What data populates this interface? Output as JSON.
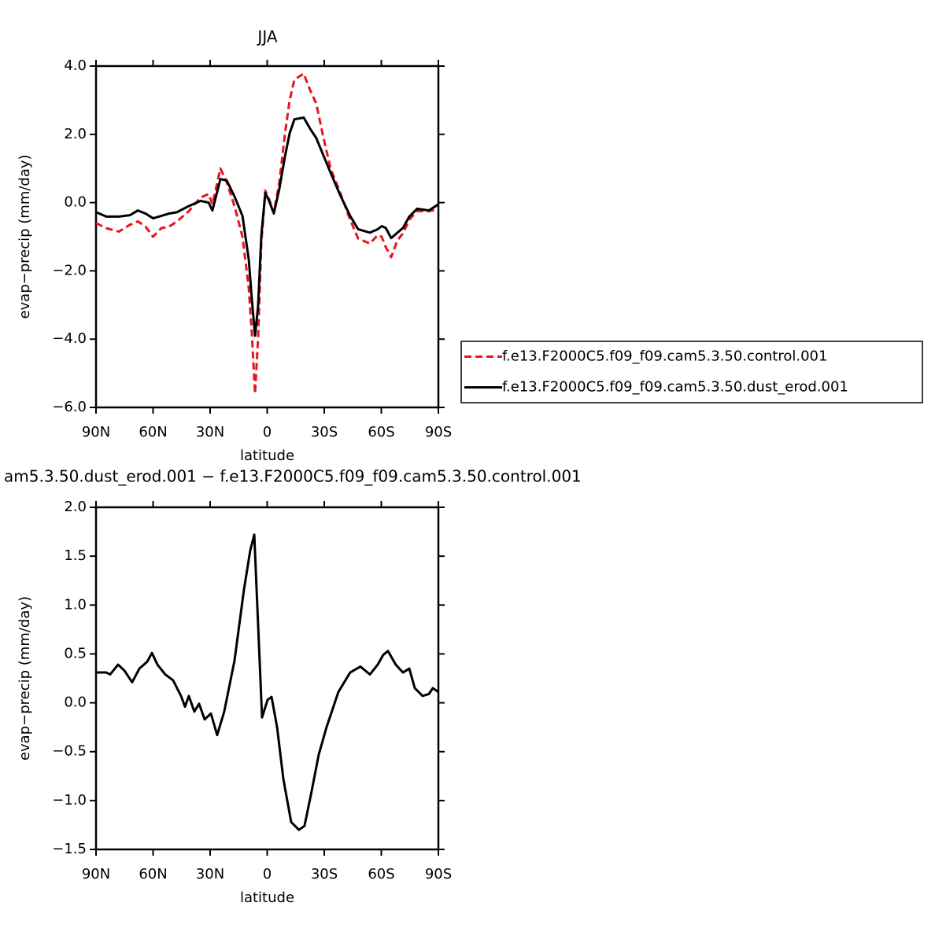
{
  "chart_data": [
    {
      "type": "line",
      "title": "JJA",
      "x_label": "latitude",
      "y_label": "evap−precip (mm/day)",
      "x": [
        90,
        84.6,
        78,
        72.2,
        68,
        64,
        60,
        55.7,
        51.5,
        47.4,
        41.2,
        35,
        30.8,
        28.8,
        24.6,
        21.3,
        17.2,
        13,
        9.7,
        8.1,
        6.4,
        4.8,
        3.1,
        1.0,
        -1.0,
        -3.5,
        -6.4,
        -9.3,
        -11.8,
        -14.3,
        -19.2,
        -22.5,
        -25.8,
        -29.2,
        -33.3,
        -38.3,
        -43.6,
        -47.8,
        -54,
        -58.1,
        -60.2,
        -62.3,
        -65.2,
        -68.5,
        -71.4,
        -74.7,
        -78.8,
        -85,
        -90
      ],
      "series": [
        {
          "name": "f.e13.F2000C5.f09_f09.cam5.3.50.control.001",
          "color": "#e8141b",
          "linestyle": "dashed",
          "values": [
            -0.6,
            -0.75,
            -0.85,
            -0.65,
            -0.55,
            -0.7,
            -1.0,
            -0.75,
            -0.7,
            -0.55,
            -0.25,
            0.15,
            0.25,
            -0.05,
            1.0,
            0.6,
            -0.1,
            -1.0,
            -2.5,
            -3.8,
            -5.6,
            -4.0,
            -1.2,
            0.35,
            0.1,
            -0.3,
            0.6,
            2.0,
            3.0,
            3.6,
            3.78,
            3.3,
            2.9,
            2.0,
            1.0,
            0.3,
            -0.5,
            -1.05,
            -1.2,
            -0.95,
            -1.0,
            -1.3,
            -1.6,
            -1.1,
            -0.9,
            -0.5,
            -0.25,
            -0.25,
            -0.2
          ]
        },
        {
          "name": "f.e13.F2000C5.f09_f09.cam5.3.50.dust_erod.001",
          "color": "#000000",
          "linestyle": "solid",
          "values": [
            -0.28,
            -0.41,
            -0.41,
            -0.37,
            -0.23,
            -0.32,
            -0.46,
            -0.39,
            -0.32,
            -0.28,
            -0.1,
            0.05,
            0.0,
            -0.23,
            0.69,
            0.65,
            0.18,
            -0.39,
            -1.66,
            -2.81,
            -3.9,
            -3.04,
            -0.97,
            0.28,
            0.05,
            -0.32,
            0.41,
            1.34,
            2.03,
            2.44,
            2.49,
            2.17,
            1.89,
            1.43,
            0.88,
            0.23,
            -0.39,
            -0.78,
            -0.88,
            -0.78,
            -0.69,
            -0.74,
            -1.04,
            -0.88,
            -0.74,
            -0.41,
            -0.18,
            -0.23,
            -0.05
          ]
        }
      ],
      "xlim": [
        90,
        -90
      ],
      "xticks": [
        {
          "value": 90,
          "label": "90N"
        },
        {
          "value": 60,
          "label": "60N"
        },
        {
          "value": 30,
          "label": "30N"
        },
        0,
        {
          "value": -30,
          "label": "30S"
        },
        {
          "value": -60,
          "label": "60S"
        },
        {
          "value": -90,
          "label": "90S"
        }
      ],
      "ylim": [
        -6,
        4
      ],
      "yticks": [
        {
          "value": 4,
          "label": "4.0"
        },
        {
          "value": 2,
          "label": "2.0"
        },
        {
          "value": 0,
          "label": "0.0"
        },
        {
          "value": -2,
          "label": "−2.0"
        },
        {
          "value": -4,
          "label": "−4.0"
        },
        {
          "value": -6,
          "label": "−6.0"
        }
      ],
      "legend": "right"
    },
    {
      "type": "line",
      "title": "am5.3.50.dust_erod.001 − f.e13.F2000C5.f09_f09.cam5.3.50.control.001",
      "x_label": "latitude",
      "y_label": "evap−precip (mm/day)",
      "x": [
        90,
        84.6,
        82.6,
        78.4,
        75.1,
        71,
        67.2,
        63.1,
        60.6,
        57.7,
        53.6,
        49.5,
        45.3,
        43.2,
        41.2,
        38.3,
        35.8,
        32.9,
        29.6,
        26.3,
        22.6,
        17.2,
        12.2,
        8.9,
        6.8,
        5.2,
        2.7,
        -0.2,
        -2.3,
        -5.2,
        -8.5,
        -12.6,
        -16.7,
        -19.6,
        -23,
        -27.1,
        -31.2,
        -37.4,
        -43.6,
        -49,
        -54,
        -58.1,
        -61,
        -63.5,
        -67.6,
        -71.4,
        -74.7,
        -77.6,
        -81.7,
        -85,
        -87.1,
        -90
      ],
      "series": [
        {
          "color": "#000000",
          "linestyle": "solid",
          "values": [
            0.31,
            0.31,
            0.29,
            0.39,
            0.33,
            0.21,
            0.35,
            0.42,
            0.51,
            0.39,
            0.29,
            0.23,
            0.07,
            -0.04,
            0.07,
            -0.09,
            -0.01,
            -0.17,
            -0.11,
            -0.33,
            -0.09,
            0.43,
            1.16,
            1.56,
            1.72,
            0.99,
            -0.15,
            0.03,
            0.06,
            -0.25,
            -0.78,
            -1.22,
            -1.3,
            -1.26,
            -0.94,
            -0.53,
            -0.25,
            0.11,
            0.31,
            0.37,
            0.29,
            0.39,
            0.49,
            0.53,
            0.39,
            0.31,
            0.35,
            0.15,
            0.07,
            0.09,
            0.15,
            0.11
          ]
        }
      ],
      "xlim": [
        90,
        -90
      ],
      "xticks": [
        {
          "value": 90,
          "label": "90N"
        },
        {
          "value": 60,
          "label": "60N"
        },
        {
          "value": 30,
          "label": "30N"
        },
        0,
        {
          "value": -30,
          "label": "30S"
        },
        {
          "value": -60,
          "label": "60S"
        },
        {
          "value": -90,
          "label": "90S"
        }
      ],
      "ylim": [
        -1.5,
        2
      ],
      "yticks": [
        {
          "value": 2,
          "label": "2.0"
        },
        {
          "value": 1.5,
          "label": "1.5"
        },
        {
          "value": 1,
          "label": "1.0"
        },
        {
          "value": 0.5,
          "label": "0.5"
        },
        {
          "value": 0,
          "label": "0.0"
        },
        {
          "value": -0.5,
          "label": "−0.5"
        },
        {
          "value": -1,
          "label": "−1.0"
        },
        {
          "value": -1.5,
          "label": "−1.5"
        }
      ]
    }
  ]
}
